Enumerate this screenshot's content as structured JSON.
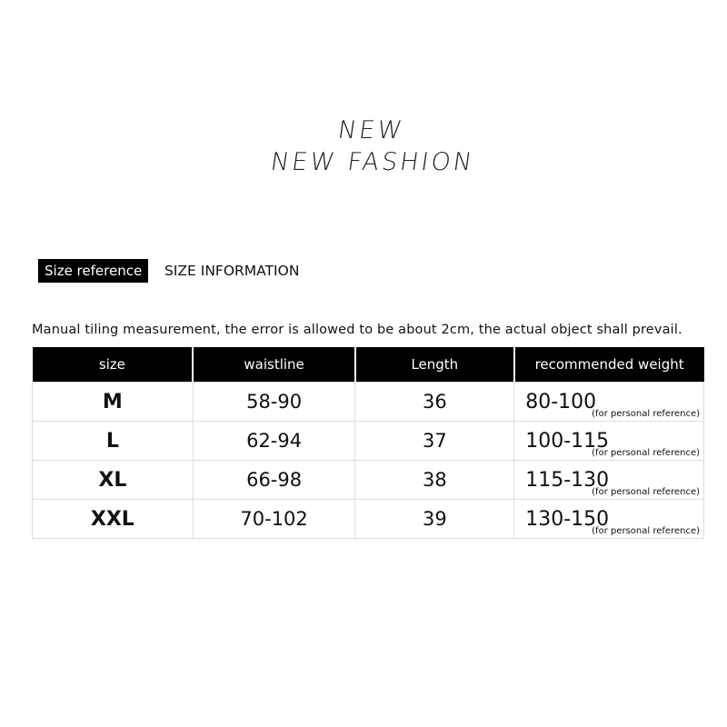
{
  "title": {
    "line1": "NEW",
    "line2": "NEW FASHION"
  },
  "section": {
    "tag": "Size reference",
    "heading": "SIZE INFORMATION"
  },
  "note": "Manual tiling measurement, the error is allowed to be about 2cm, the actual object shall prevail.",
  "table": {
    "headers": [
      "size",
      "waistline",
      "Length",
      "recommended weight"
    ],
    "rows": [
      {
        "size": "M",
        "waistline": "58-90",
        "length": "36",
        "weight": "80-100",
        "ref": "(for personal reference)"
      },
      {
        "size": "L",
        "waistline": "62-94",
        "length": "37",
        "weight": "100-115",
        "ref": "(for personal reference)"
      },
      {
        "size": "XL",
        "waistline": "66-98",
        "length": "38",
        "weight": "115-130",
        "ref": "(for personal reference)"
      },
      {
        "size": "XXL",
        "waistline": "70-102",
        "length": "39",
        "weight": "130-150",
        "ref": "(for personal reference)"
      }
    ]
  }
}
